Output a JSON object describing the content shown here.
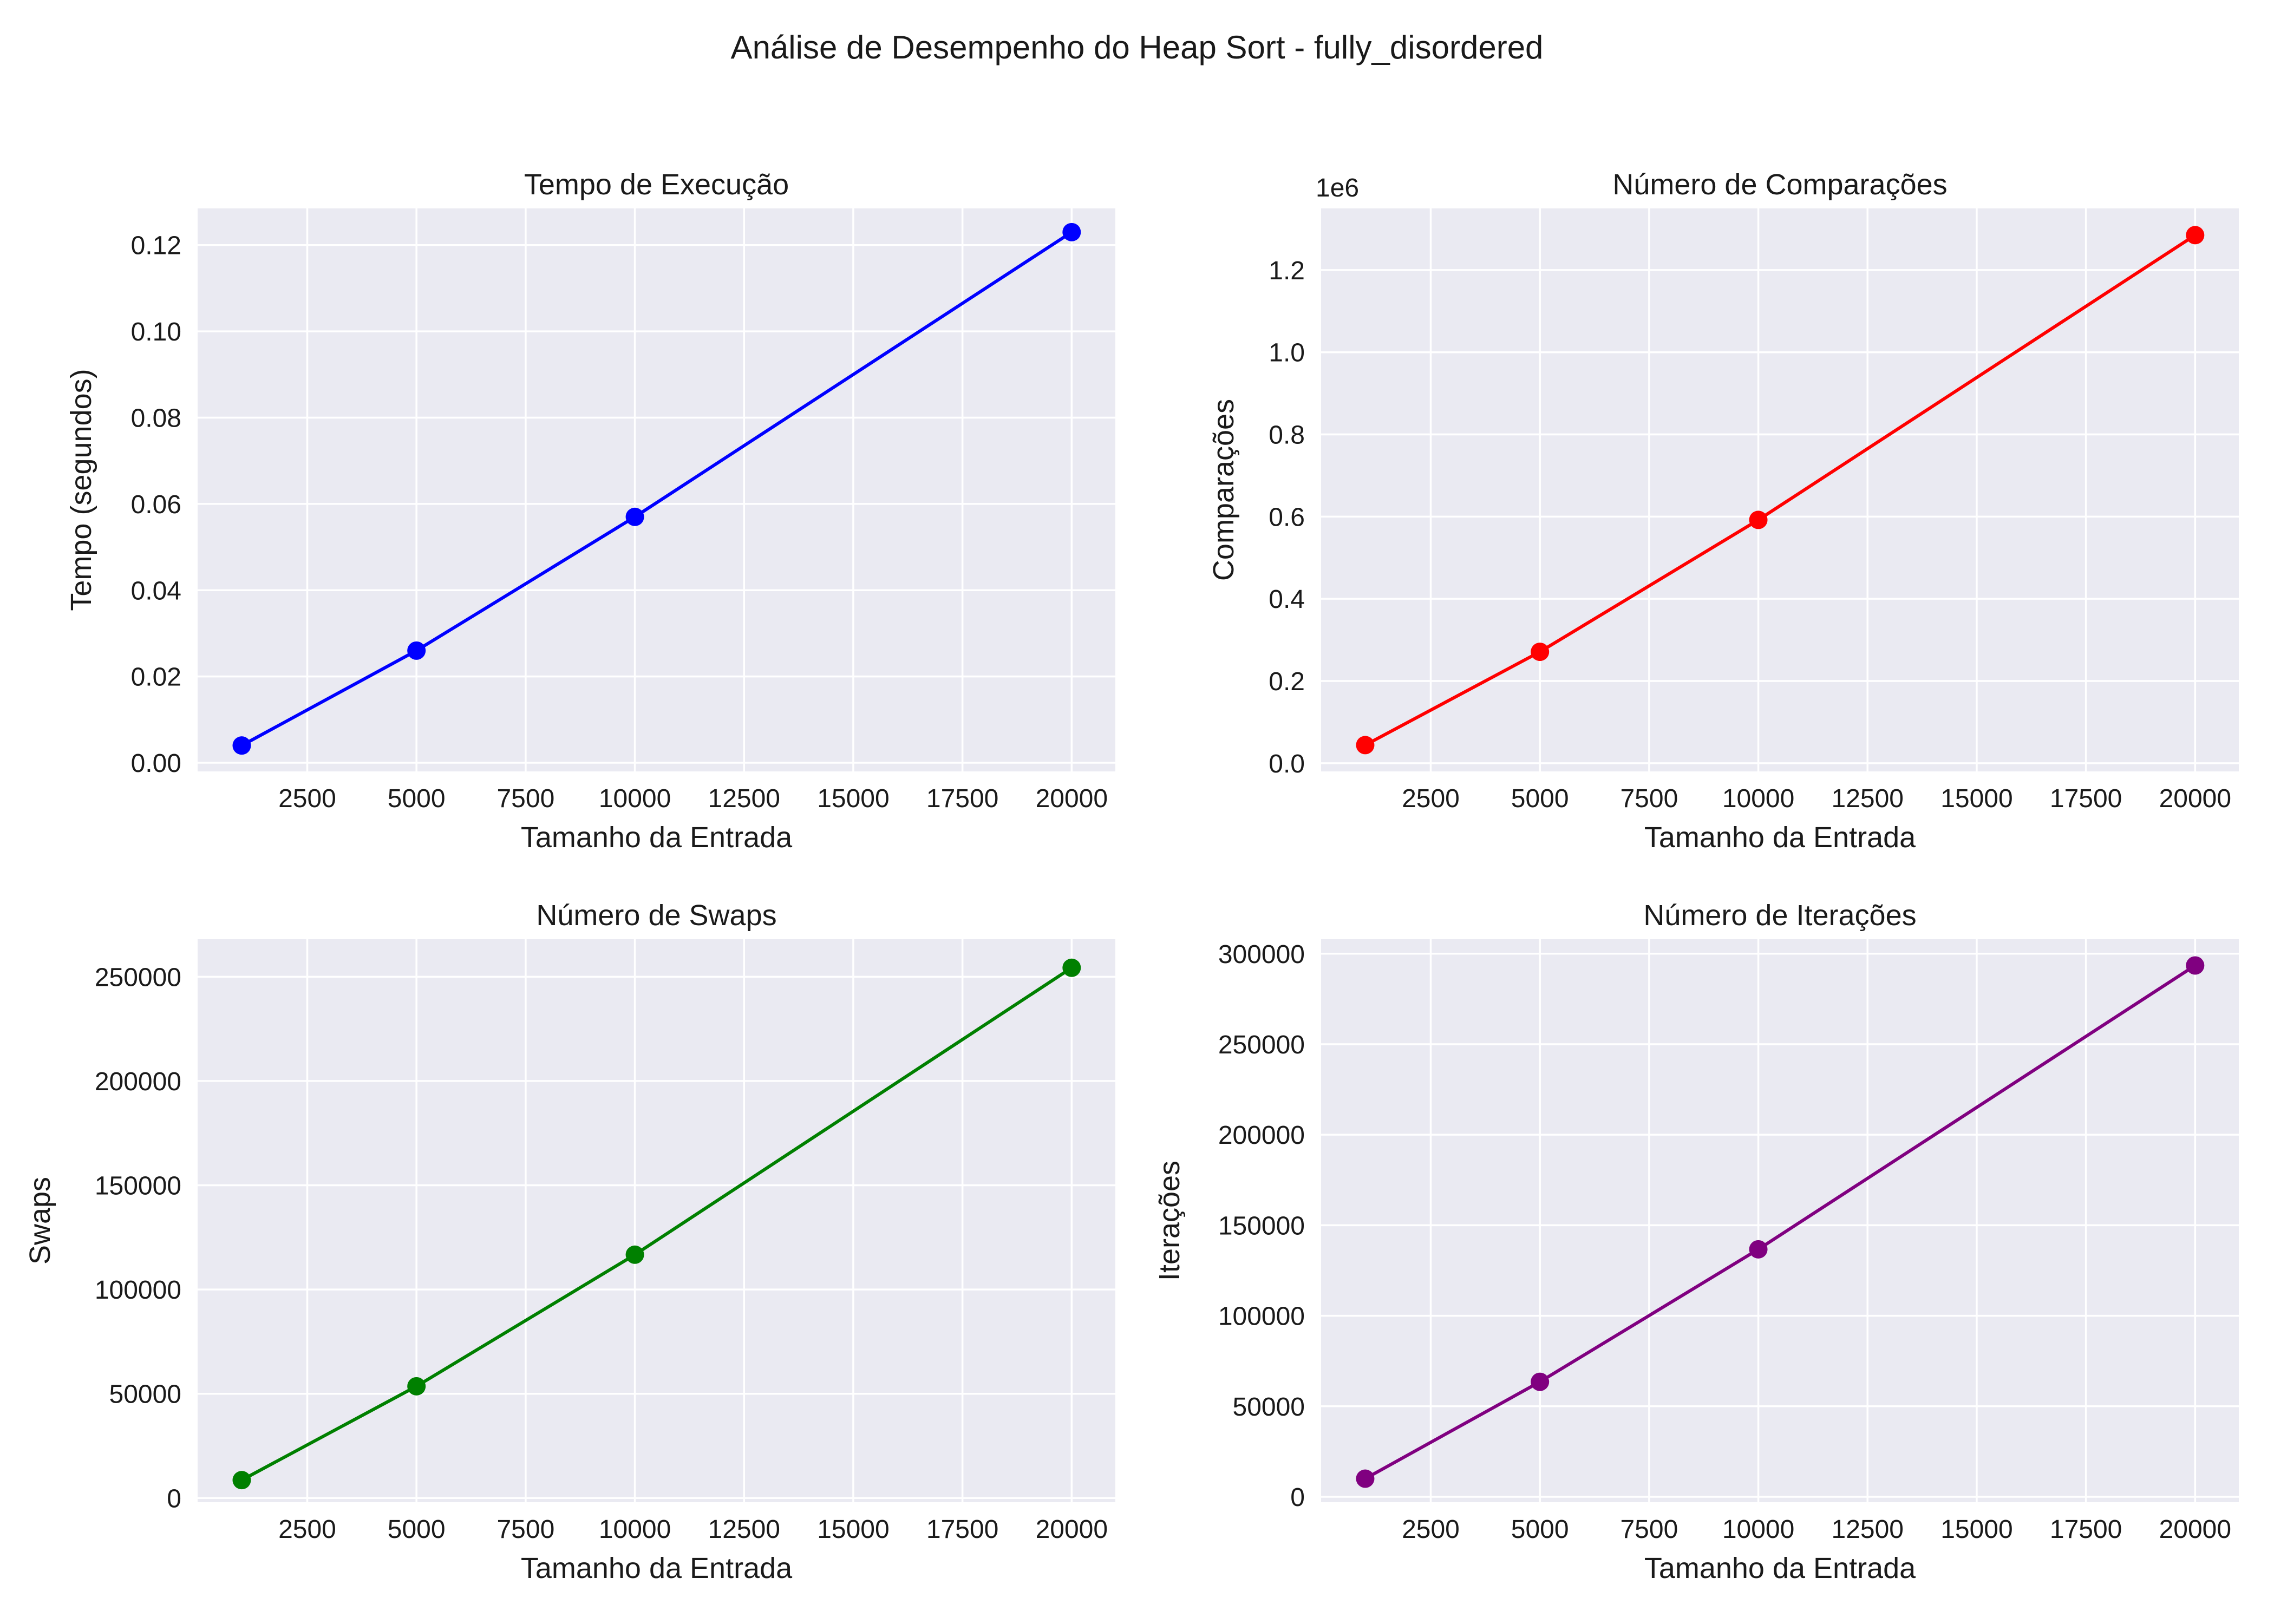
{
  "figure": {
    "title": "Análise de Desempenho do Heap Sort - fully_disordered"
  },
  "chart_data": [
    {
      "type": "line",
      "title": "Tempo de Execução",
      "xlabel": "Tamanho da Entrada",
      "ylabel": "Tempo (segundos)",
      "color": "#0000ff",
      "x": [
        1000,
        5000,
        10000,
        20000
      ],
      "y": [
        0.004,
        0.026,
        0.057,
        0.123
      ],
      "xlim": [
        -10,
        21000
      ],
      "ylim": [
        -0.002,
        0.1285
      ],
      "xticks": [
        2500,
        5000,
        7500,
        10000,
        12500,
        15000,
        17500,
        20000
      ],
      "xtick_labels": [
        "2500",
        "5000",
        "7500",
        "10000",
        "12500",
        "15000",
        "17500",
        "20000"
      ],
      "yticks": [
        0.0,
        0.02,
        0.04,
        0.06,
        0.08,
        0.1,
        0.12
      ],
      "ytick_labels": [
        "0.00",
        "0.02",
        "0.04",
        "0.06",
        "0.08",
        "0.10",
        "0.12"
      ],
      "offset_text": "",
      "grid": true
    },
    {
      "type": "line",
      "title": "Número de Comparações",
      "xlabel": "Tamanho da Entrada",
      "ylabel": "Comparações",
      "color": "#ff0000",
      "x": [
        1000,
        5000,
        10000,
        20000
      ],
      "y": [
        44000,
        271000,
        592000,
        1285000
      ],
      "xlim": [
        -10,
        21000
      ],
      "ylim": [
        -20000,
        1350000
      ],
      "xticks": [
        2500,
        5000,
        7500,
        10000,
        12500,
        15000,
        17500,
        20000
      ],
      "xtick_labels": [
        "2500",
        "5000",
        "7500",
        "10000",
        "12500",
        "15000",
        "17500",
        "20000"
      ],
      "yticks": [
        0,
        200000,
        400000,
        600000,
        800000,
        1000000,
        1200000
      ],
      "ytick_labels": [
        "0.0",
        "0.2",
        "0.4",
        "0.6",
        "0.8",
        "1.0",
        "1.2"
      ],
      "offset_text": "1e6",
      "grid": true
    },
    {
      "type": "line",
      "title": "Número de Swaps",
      "xlabel": "Tamanho da Entrada",
      "ylabel": "Swaps",
      "color": "#008000",
      "x": [
        1000,
        5000,
        10000,
        20000
      ],
      "y": [
        8600,
        53600,
        116700,
        254300
      ],
      "xlim": [
        -10,
        21000
      ],
      "ylim": [
        -2000,
        268000
      ],
      "xticks": [
        2500,
        5000,
        7500,
        10000,
        12500,
        15000,
        17500,
        20000
      ],
      "xtick_labels": [
        "2500",
        "5000",
        "7500",
        "10000",
        "12500",
        "15000",
        "17500",
        "20000"
      ],
      "yticks": [
        0,
        50000,
        100000,
        150000,
        200000,
        250000
      ],
      "ytick_labels": [
        "0",
        "50000",
        "100000",
        "150000",
        "200000",
        "250000"
      ],
      "offset_text": "",
      "grid": true
    },
    {
      "type": "line",
      "title": "Número de Iterações",
      "xlabel": "Tamanho da Entrada",
      "ylabel": "Iterações",
      "color": "#800080",
      "x": [
        1000,
        5000,
        10000,
        20000
      ],
      "y": [
        10000,
        63500,
        136700,
        293500
      ],
      "xlim": [
        -10,
        21000
      ],
      "ylim": [
        -3000,
        308000
      ],
      "xticks": [
        2500,
        5000,
        7500,
        10000,
        12500,
        15000,
        17500,
        20000
      ],
      "xtick_labels": [
        "2500",
        "5000",
        "7500",
        "10000",
        "12500",
        "15000",
        "17500",
        "20000"
      ],
      "yticks": [
        0,
        50000,
        100000,
        150000,
        200000,
        250000,
        300000
      ],
      "ytick_labels": [
        "0",
        "50000",
        "100000",
        "150000",
        "200000",
        "250000",
        "300000"
      ],
      "offset_text": "",
      "grid": true
    }
  ]
}
